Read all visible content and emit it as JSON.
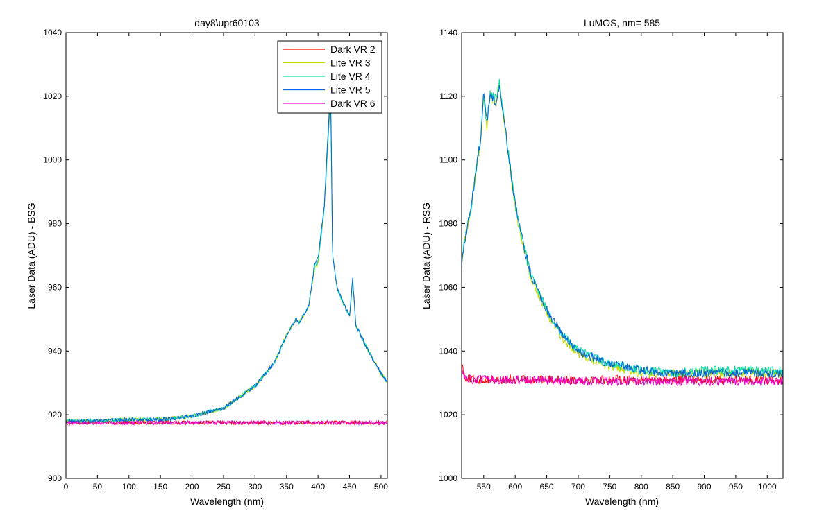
{
  "figure_background": "#ffffff",
  "chart_data": [
    {
      "type": "line",
      "title": "day8\\upr60103",
      "xlabel": "Wavelength (nm)",
      "ylabel": "Laser Data (ADU) - BSG",
      "xlim": [
        0,
        510
      ],
      "ylim": [
        900,
        1040
      ],
      "xticks": [
        0,
        50,
        100,
        150,
        200,
        250,
        300,
        350,
        400,
        450,
        500
      ],
      "yticks": [
        900,
        920,
        940,
        960,
        980,
        1000,
        1020,
        1040
      ],
      "grid": false,
      "legend": "top-right",
      "series": [
        {
          "name": "Dark VR 2",
          "color": "#ff0000",
          "x": [
            0,
            510
          ],
          "y": [
            917.5,
            917.5
          ]
        },
        {
          "name": "Lite VR 3",
          "color": "#c8dc00",
          "x": [
            0,
            50,
            100,
            150,
            200,
            250,
            300,
            330,
            350,
            365,
            370,
            385,
            395,
            400,
            410,
            420,
            423,
            430,
            440,
            450,
            455,
            460,
            480,
            500,
            510
          ],
          "y": [
            918,
            918,
            918.5,
            918.5,
            919.5,
            922,
            929,
            936,
            945,
            950,
            949,
            954,
            966,
            967,
            985,
            1020,
            970,
            960,
            955,
            951,
            962,
            948,
            940,
            933,
            930
          ]
        },
        {
          "name": "Lite VR 4",
          "color": "#00e0a0",
          "x": [
            0,
            50,
            100,
            150,
            200,
            250,
            300,
            330,
            350,
            365,
            370,
            385,
            395,
            400,
            410,
            420,
            423,
            430,
            440,
            450,
            455,
            460,
            480,
            500,
            510
          ],
          "y": [
            918,
            918,
            918.5,
            918.5,
            919.5,
            922,
            929,
            936,
            945,
            950,
            949,
            954,
            967,
            968,
            985,
            1020,
            970,
            960,
            955,
            951,
            962,
            948,
            940,
            933,
            930
          ]
        },
        {
          "name": "Lite VR 5",
          "color": "#0064dc",
          "x": [
            0,
            50,
            100,
            150,
            200,
            250,
            300,
            330,
            350,
            365,
            370,
            385,
            395,
            400,
            410,
            420,
            423,
            430,
            440,
            450,
            455,
            460,
            480,
            500,
            510
          ],
          "y": [
            918,
            918,
            918.5,
            918.5,
            919.5,
            922,
            929,
            936,
            945,
            950,
            949,
            954,
            968,
            969,
            986,
            1024,
            970,
            960,
            955,
            951,
            963,
            948,
            940,
            933,
            930
          ]
        },
        {
          "name": "Dark VR 6",
          "color": "#e600c8",
          "x": [
            0,
            510
          ],
          "y": [
            917.5,
            917.5
          ]
        }
      ]
    },
    {
      "type": "line",
      "title": "LuMOS, nm= 585",
      "xlabel": "Wavelength (nm)",
      "ylabel": "Laser Data (ADU) - RSG",
      "xlim": [
        515,
        1025
      ],
      "ylim": [
        1000,
        1140
      ],
      "xticks": [
        550,
        600,
        650,
        700,
        750,
        800,
        850,
        900,
        950,
        1000
      ],
      "yticks": [
        1000,
        1020,
        1040,
        1060,
        1080,
        1100,
        1120,
        1140
      ],
      "grid": false,
      "legend": "none",
      "series": [
        {
          "color": "#ff0000",
          "x": [
            515,
            520,
            530,
            600,
            700,
            800,
            900,
            1000,
            1025
          ],
          "y": [
            1036,
            1032,
            1031,
            1031,
            1031,
            1031,
            1031,
            1031,
            1031
          ]
        },
        {
          "color": "#c8dc00",
          "x": [
            515,
            520,
            530,
            540,
            545,
            550,
            555,
            560,
            570,
            575,
            580,
            590,
            600,
            610,
            625,
            650,
            675,
            700,
            750,
            800,
            850,
            900,
            950,
            1000,
            1025
          ],
          "y": [
            1068,
            1075,
            1085,
            1100,
            1105,
            1120,
            1110,
            1120,
            1118,
            1126,
            1115,
            1100,
            1085,
            1075,
            1063,
            1052,
            1044,
            1039,
            1035,
            1033,
            1033,
            1033,
            1033,
            1033,
            1033
          ]
        },
        {
          "color": "#00e0a0",
          "x": [
            515,
            520,
            530,
            540,
            545,
            550,
            555,
            560,
            570,
            575,
            580,
            590,
            600,
            610,
            625,
            650,
            675,
            700,
            750,
            800,
            850,
            900,
            950,
            1000,
            1025
          ],
          "y": [
            1068,
            1075,
            1085,
            1100,
            1106,
            1121,
            1111,
            1121,
            1119,
            1125,
            1116,
            1101,
            1086,
            1076,
            1064,
            1053,
            1045,
            1040,
            1036,
            1034,
            1033,
            1034,
            1034,
            1034,
            1034
          ]
        },
        {
          "color": "#0064dc",
          "x": [
            515,
            520,
            530,
            540,
            545,
            550,
            555,
            560,
            570,
            575,
            580,
            590,
            600,
            610,
            625,
            650,
            675,
            700,
            750,
            800,
            850,
            900,
            950,
            1000,
            1025
          ],
          "y": [
            1067,
            1075,
            1085,
            1100,
            1106,
            1122,
            1112,
            1120,
            1118,
            1124,
            1116,
            1101,
            1086,
            1076,
            1064,
            1053,
            1045,
            1040,
            1036,
            1034,
            1033,
            1033,
            1033,
            1033,
            1033
          ]
        },
        {
          "color": "#e600c8",
          "x": [
            515,
            520,
            530,
            600,
            700,
            800,
            900,
            1000,
            1025
          ],
          "y": [
            1036,
            1031,
            1031,
            1031,
            1030.5,
            1030.5,
            1030.5,
            1030.5,
            1030.5
          ]
        }
      ]
    }
  ]
}
